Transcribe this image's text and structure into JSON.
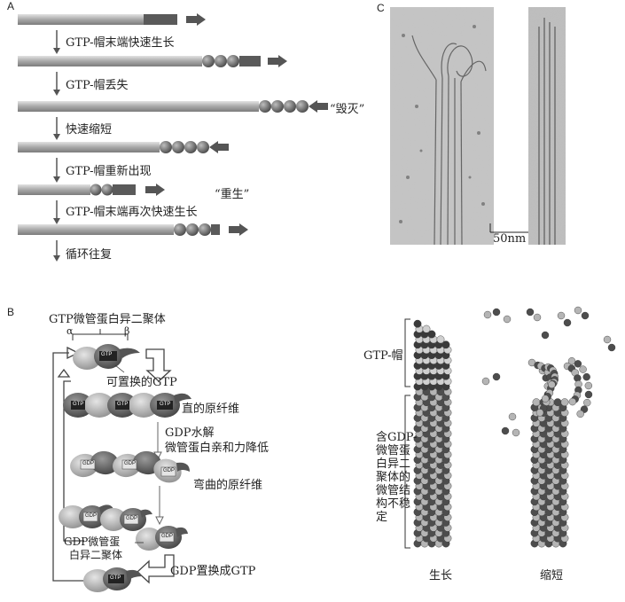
{
  "panel_a": {
    "letter": "A",
    "steps": [
      "GTP-帽末端快速生长",
      "GTP-帽丢失",
      "快速缩短",
      "GTP-帽重新出现",
      "GTP-帽末端再次快速生长",
      "循环往复"
    ],
    "catastrophe": "“毁灭”",
    "rescue": "“重生”"
  },
  "panel_c": {
    "letter": "C",
    "scale_bar": "50nm"
  },
  "panel_b": {
    "letter": "B",
    "title": "GTP微管蛋白异二聚体",
    "alpha": "α",
    "beta": "β",
    "exchangeable_gtp": "可置换的GTP",
    "straight_pf": "直的原纤维",
    "hydrolysis_1": "GDP水解",
    "hydrolysis_2": "微管蛋白亲和力降低",
    "curved_pf": "弯曲的原纤维",
    "gdp_dimer_1": "GDP微管蛋",
    "gdp_dimer_2": "白异二聚体",
    "gdp_exchange": "GDP置换成GTP",
    "gtp_tag": "GTP",
    "gdp_tag": "GDP"
  },
  "panel_b_right": {
    "gtp_cap": "GTP-帽",
    "unstable_lines": [
      "含GDP-",
      "微管蛋",
      "白异二",
      "聚体的",
      "微管结",
      "构不稳",
      "定"
    ],
    "growing": "生长",
    "shrinking": "缩短"
  },
  "colors": {
    "rod_light": "#c9c9c9",
    "rod_dark": "#6e6e6e",
    "cap": "#555555",
    "arrow": "#555555",
    "tubulin_dark": "#4d4d4d",
    "tubulin_light": "#b5b5b5"
  }
}
